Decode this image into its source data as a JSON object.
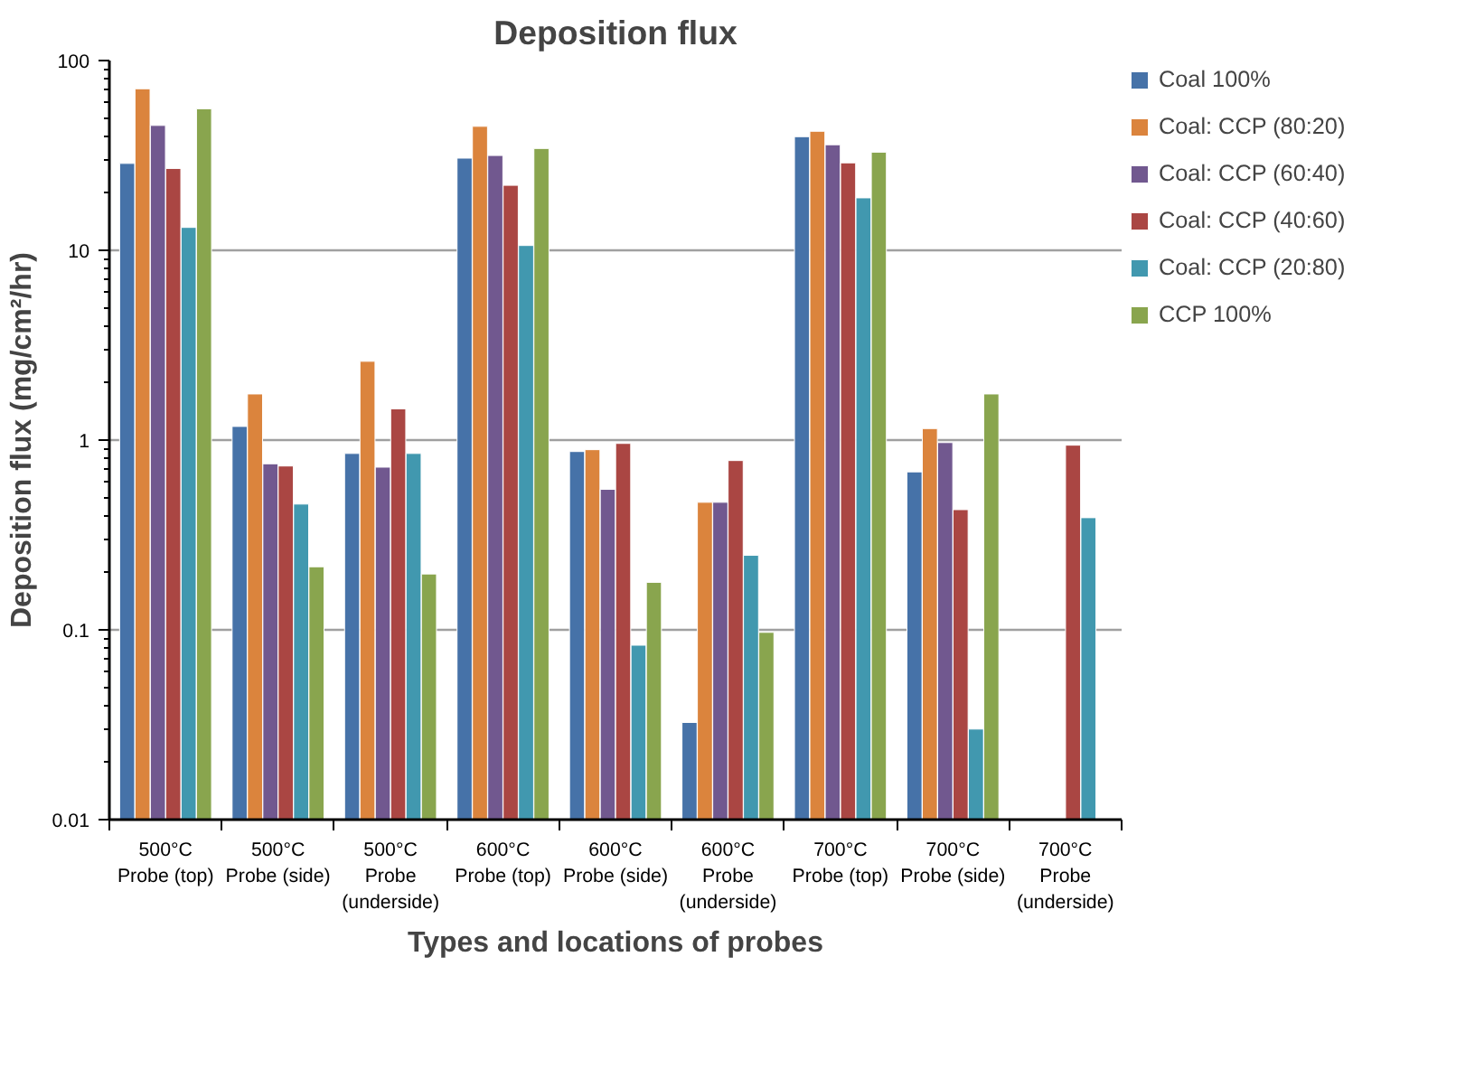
{
  "chart_data": {
    "type": "bar",
    "title": "Deposition flux",
    "xlabel": "Types and locations of probes",
    "ylabel": "Deposition flux (mg/cm²/hr)",
    "categories": [
      "500°C\nProbe (top)",
      "500°C\nProbe (side)",
      "500°C\nProbe\n(underside)",
      "600°C\nProbe (top)",
      "600°C\nProbe (side)",
      "600°C\nProbe\n(underside)",
      "700°C\nProbe (top)",
      "700°C\nProbe (side)",
      "700°C\nProbe\n(underside)"
    ],
    "series": [
      {
        "name": "Coal 100%",
        "color": "#4672a8",
        "values": [
          28.7,
          1.18,
          0.85,
          30.6,
          0.87,
          0.0325,
          39.7,
          0.68,
          null
        ]
      },
      {
        "name": "Coal: CCP (80:20)",
        "color": "#db843d",
        "values": [
          71,
          1.75,
          2.6,
          45,
          0.89,
          0.47,
          42.4,
          1.15,
          null
        ]
      },
      {
        "name": "Coal: CCP (60:40)",
        "color": "#71588f",
        "values": [
          45.5,
          0.75,
          0.72,
          31.6,
          0.55,
          0.47,
          36,
          0.97,
          null
        ]
      },
      {
        "name": "Coal: CCP (40:60)",
        "color": "#aa4643",
        "values": [
          27,
          0.73,
          1.46,
          22,
          0.96,
          0.78,
          28.9,
          0.43,
          0.94
        ]
      },
      {
        "name": "Coal: CCP (20:80)",
        "color": "#4198af",
        "values": [
          13.2,
          0.46,
          0.85,
          10.6,
          0.083,
          0.247,
          18.9,
          0.03,
          0.39
        ]
      },
      {
        "name": "CCP 100%",
        "color": "#89a54e",
        "values": [
          55.7,
          0.215,
          0.197,
          34.4,
          0.178,
          0.097,
          32.9,
          1.75,
          null
        ]
      }
    ],
    "ylim": [
      0.01,
      100
    ],
    "yticks": [
      0.01,
      0.1,
      1,
      10,
      100
    ],
    "log": true,
    "grid": "y",
    "legend": "right"
  }
}
